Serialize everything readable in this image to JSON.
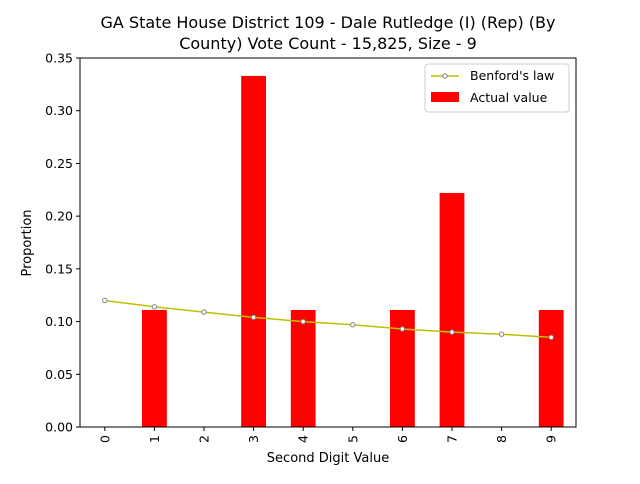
{
  "chart_data": {
    "type": "bar",
    "title_line1": "GA State House District 109 - Dale Rutledge (I) (Rep) (By",
    "title_line2": "County) Vote Count - 15,825, Size - 9",
    "xlabel": "Second Digit Value",
    "ylabel": "Proportion",
    "categories": [
      "0",
      "1",
      "2",
      "3",
      "4",
      "5",
      "6",
      "7",
      "8",
      "9"
    ],
    "ylim": [
      0,
      0.35
    ],
    "yticks": [
      0.0,
      0.05,
      0.1,
      0.15,
      0.2,
      0.25,
      0.3,
      0.35
    ],
    "ytick_labels": [
      "0.00",
      "0.05",
      "0.10",
      "0.15",
      "0.20",
      "0.25",
      "0.30",
      "0.35"
    ],
    "grid": false,
    "legend_position": "top-right",
    "series": [
      {
        "name": "Benford's law",
        "kind": "line",
        "color": "#bfbf00",
        "marker_color": "#808080",
        "values": [
          0.12,
          0.114,
          0.109,
          0.104,
          0.1,
          0.097,
          0.093,
          0.09,
          0.088,
          0.085
        ]
      },
      {
        "name": "Actual value",
        "kind": "bar",
        "color": "#ff0000",
        "values": [
          0.0,
          0.111,
          0.0,
          0.333,
          0.111,
          0.0,
          0.111,
          0.222,
          0.0,
          0.111
        ]
      }
    ]
  }
}
